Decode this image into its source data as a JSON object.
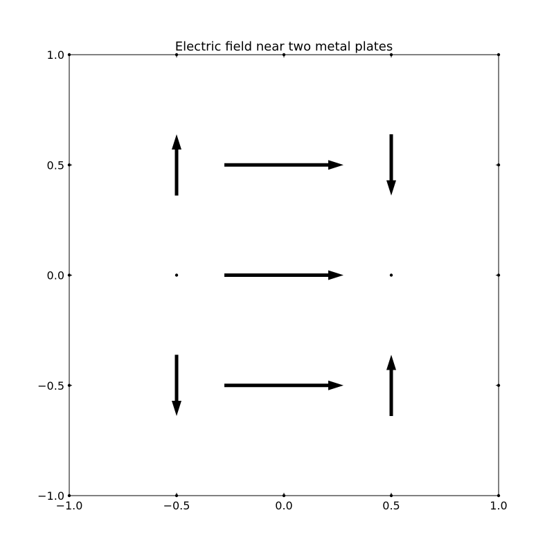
{
  "chart_data": {
    "type": "quiver",
    "title": "Electric field near two metal plates",
    "xlabel": "",
    "ylabel": "",
    "xlim": [
      -1.0,
      1.0
    ],
    "ylim": [
      -1.0,
      1.0
    ],
    "grid": false,
    "x_ticks": [
      -1.0,
      -0.5,
      0.0,
      0.5,
      1.0
    ],
    "y_ticks": [
      -1.0,
      -0.5,
      0.0,
      0.5,
      1.0
    ],
    "x_tick_labels": [
      "−1.0",
      "−0.5",
      "0.0",
      "0.5",
      "1.0"
    ],
    "y_tick_labels": [
      "−1.0",
      "−0.5",
      "0.0",
      "0.5",
      "1.0"
    ],
    "vectors": [
      {
        "x": -1.0,
        "y": -1.0,
        "u": 0.0,
        "v": 0.0
      },
      {
        "x": -0.5,
        "y": -1.0,
        "u": 0.0,
        "v": 0.0
      },
      {
        "x": 0.0,
        "y": -1.0,
        "u": 0.0,
        "v": 0.0
      },
      {
        "x": 0.5,
        "y": -1.0,
        "u": 0.0,
        "v": 0.0
      },
      {
        "x": 1.0,
        "y": -1.0,
        "u": 0.0,
        "v": 0.0
      },
      {
        "x": -1.0,
        "y": -0.5,
        "u": 0.0,
        "v": 0.0
      },
      {
        "x": -0.5,
        "y": -0.5,
        "u": 0.0,
        "v": -0.5
      },
      {
        "x": 0.0,
        "y": -0.5,
        "u": 1.0,
        "v": 0.0
      },
      {
        "x": 0.5,
        "y": -0.5,
        "u": 0.0,
        "v": 0.5
      },
      {
        "x": 1.0,
        "y": -0.5,
        "u": 0.0,
        "v": 0.0
      },
      {
        "x": -1.0,
        "y": 0.0,
        "u": 0.0,
        "v": 0.0
      },
      {
        "x": -0.5,
        "y": 0.0,
        "u": 0.0,
        "v": 0.0
      },
      {
        "x": 0.0,
        "y": 0.0,
        "u": 1.0,
        "v": 0.0
      },
      {
        "x": 0.5,
        "y": 0.0,
        "u": 0.0,
        "v": 0.0
      },
      {
        "x": 1.0,
        "y": 0.0,
        "u": 0.0,
        "v": 0.0
      },
      {
        "x": -1.0,
        "y": 0.5,
        "u": 0.0,
        "v": 0.0
      },
      {
        "x": -0.5,
        "y": 0.5,
        "u": 0.0,
        "v": 0.5
      },
      {
        "x": 0.0,
        "y": 0.5,
        "u": 1.0,
        "v": 0.0
      },
      {
        "x": 0.5,
        "y": 0.5,
        "u": 0.0,
        "v": -0.5
      },
      {
        "x": 1.0,
        "y": 0.5,
        "u": 0.0,
        "v": 0.0
      },
      {
        "x": -1.0,
        "y": 1.0,
        "u": 0.0,
        "v": 0.0
      },
      {
        "x": -0.5,
        "y": 1.0,
        "u": 0.0,
        "v": 0.0
      },
      {
        "x": 0.0,
        "y": 1.0,
        "u": 0.0,
        "v": 0.0
      },
      {
        "x": 0.5,
        "y": 1.0,
        "u": 0.0,
        "v": 0.0
      },
      {
        "x": 1.0,
        "y": 1.0,
        "u": 0.0,
        "v": 0.0
      }
    ],
    "color": "#000000"
  }
}
